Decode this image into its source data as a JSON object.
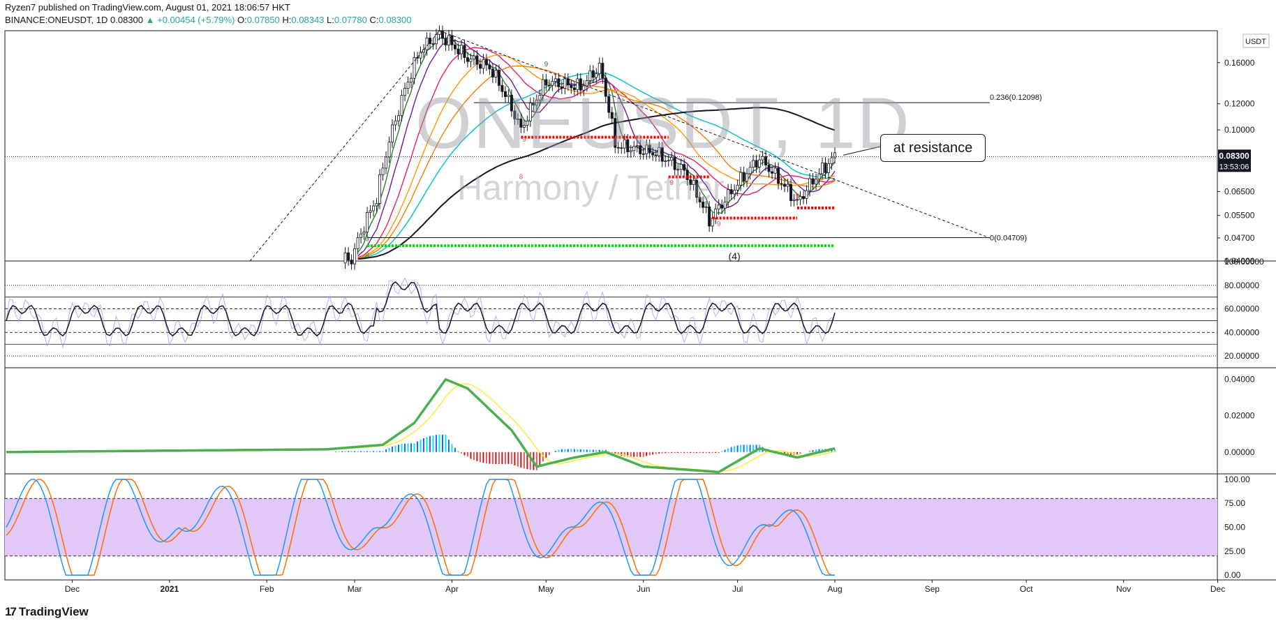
{
  "header": {
    "publisher_line": "Ryzen7 published on TradingView.com, August 01, 2021 18:06:57 HKT",
    "symbol_line": "BINANCE:ONEUSDT, 1D",
    "last_price": "0.08300",
    "change": "▲ +0.00454 (+5.79%)",
    "o_label": "O:",
    "o_value": "0.07850",
    "h_label": "H:",
    "h_value": "0.08343",
    "l_label": "L:",
    "l_value": "0.07780",
    "c_label": "C:",
    "c_value": "0.08300"
  },
  "watermark": {
    "symbol": "ONEUSDT, 1D",
    "description": "Harmony / Tether"
  },
  "callout": "at resistance",
  "logo": {
    "mark": "17",
    "text": "TradingView"
  },
  "colors": {
    "up": "#26a69a",
    "down": "#ef5350",
    "text": "#131722",
    "stoch_band": "#e1c8f8",
    "price_badge": "#131722"
  },
  "chart_data": [
    {
      "type": "candlestick",
      "title": "BINANCE:ONEUSDT, 1D",
      "y_scale": "log",
      "currency": "USDT",
      "ylim": [
        0.04,
        0.2
      ],
      "y_ticks": [
        "0.16000",
        "0.12000",
        "0.10000",
        "0.06500",
        "0.05500",
        "0.04700",
        "0.04000"
      ],
      "last_price_label": "0.08300",
      "countdown_label": "13:53:06",
      "x_ticks": [
        "Dec",
        "2021",
        "Feb",
        "Mar",
        "Apr",
        "May",
        "Jun",
        "Jul",
        "Aug",
        "Sep",
        "Oct",
        "Nov",
        "Dec"
      ],
      "close_path": [
        {
          "date": "2020-11-10",
          "close": 0.0405
        },
        {
          "date": "2021-02-28",
          "close": 0.0405
        },
        {
          "date": "2021-03-08",
          "close": 0.062
        },
        {
          "date": "2021-03-15",
          "close": 0.115
        },
        {
          "date": "2021-03-22",
          "close": 0.175
        },
        {
          "date": "2021-03-28",
          "close": 0.195
        },
        {
          "date": "2021-04-06",
          "close": 0.165
        },
        {
          "date": "2021-04-13",
          "close": 0.155
        },
        {
          "date": "2021-04-23",
          "close": 0.1
        },
        {
          "date": "2021-05-01",
          "close": 0.14
        },
        {
          "date": "2021-05-12",
          "close": 0.135
        },
        {
          "date": "2021-05-18",
          "close": 0.155
        },
        {
          "date": "2021-05-23",
          "close": 0.09
        },
        {
          "date": "2021-06-05",
          "close": 0.085
        },
        {
          "date": "2021-06-14",
          "close": 0.075
        },
        {
          "date": "2021-06-22",
          "close": 0.053
        },
        {
          "date": "2021-06-28",
          "close": 0.063
        },
        {
          "date": "2021-07-08",
          "close": 0.082
        },
        {
          "date": "2021-07-20",
          "close": 0.06
        },
        {
          "date": "2021-07-26",
          "close": 0.072
        },
        {
          "date": "2021-08-01",
          "close": 0.083
        }
      ],
      "annotations": {
        "fib_0236": "0.236(0.12098)",
        "fib_0": "0(0.04709)",
        "wave_label": "(4)",
        "td_counts": [
          "9",
          "8",
          "8",
          "9",
          "9",
          "9",
          "9",
          "9"
        ]
      }
    },
    {
      "type": "line",
      "indicator": "RSI",
      "ylim": [
        10,
        100
      ],
      "y_ticks": [
        "100.00000",
        "80.00000",
        "60.00000",
        "40.00000",
        "20.00000"
      ],
      "level_lines": [
        70,
        60,
        50,
        40,
        30
      ]
    },
    {
      "type": "bar",
      "indicator": "MACD",
      "ylim": [
        -0.012,
        0.046
      ],
      "y_ticks": [
        "0.04000",
        "0.02000",
        "0.00000"
      ],
      "macd_path": [
        {
          "date": "2020-11-10",
          "value": 0.0
        },
        {
          "date": "2021-02-20",
          "value": 0.0015
        },
        {
          "date": "2021-03-10",
          "value": 0.004
        },
        {
          "date": "2021-03-20",
          "value": 0.016
        },
        {
          "date": "2021-03-30",
          "value": 0.04
        },
        {
          "date": "2021-04-06",
          "value": 0.035
        },
        {
          "date": "2021-04-20",
          "value": 0.012
        },
        {
          "date": "2021-04-28",
          "value": -0.008
        },
        {
          "date": "2021-05-10",
          "value": -0.003
        },
        {
          "date": "2021-05-20",
          "value": 0.0
        },
        {
          "date": "2021-06-01",
          "value": -0.008
        },
        {
          "date": "2021-06-25",
          "value": -0.011
        },
        {
          "date": "2021-07-08",
          "value": 0.002
        },
        {
          "date": "2021-07-20",
          "value": -0.003
        },
        {
          "date": "2021-08-01",
          "value": 0.002
        }
      ]
    },
    {
      "type": "line",
      "indicator": "Stochastic",
      "ylim": [
        -5,
        105
      ],
      "y_ticks": [
        "100.00",
        "75.00",
        "50.00",
        "25.00",
        "0.00"
      ],
      "band": [
        20,
        80
      ]
    }
  ]
}
